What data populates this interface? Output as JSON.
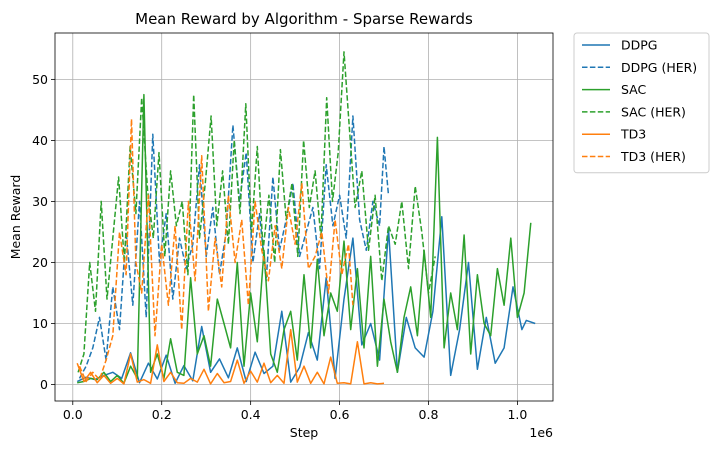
{
  "chart_data": {
    "type": "line",
    "title": "Mean Reward by Algorithm - Sparse Rewards",
    "xlabel": "Step",
    "ylabel": "Mean Reward",
    "x_offset_label": "1e6",
    "xlim": [
      -0.04,
      1.08
    ],
    "ylim": [
      -2.7,
      57.6
    ],
    "xticks": [
      0.0,
      0.2,
      0.4,
      0.6,
      0.8,
      1.0
    ],
    "xtick_labels": [
      "0.0",
      "0.2",
      "0.4",
      "0.6",
      "0.8",
      "1.0"
    ],
    "yticks": [
      0,
      10,
      20,
      30,
      40,
      50
    ],
    "ytick_labels": [
      "0",
      "10",
      "20",
      "30",
      "40",
      "50"
    ],
    "grid": true,
    "legend_position": "outside-upper-right",
    "series": [
      {
        "name": "DDPG",
        "color": "#1f77b4",
        "dash": "solid",
        "x": [
          0.01,
          0.03,
          0.05,
          0.07,
          0.09,
          0.11,
          0.13,
          0.15,
          0.17,
          0.19,
          0.21,
          0.23,
          0.25,
          0.27,
          0.29,
          0.31,
          0.33,
          0.35,
          0.37,
          0.39,
          0.41,
          0.43,
          0.45,
          0.47,
          0.49,
          0.51,
          0.53,
          0.55,
          0.57,
          0.59,
          0.61,
          0.63,
          0.65,
          0.67,
          0.69,
          0.71,
          0.73,
          0.75,
          0.77,
          0.79,
          0.81,
          0.83,
          0.85,
          0.87,
          0.89,
          0.91,
          0.93,
          0.95,
          0.97,
          0.99,
          1.01,
          1.02,
          1.04
        ],
        "y": [
          0.5,
          1.2,
          0.8,
          1.5,
          2.0,
          1.0,
          5.2,
          0.3,
          3.5,
          0.9,
          4.8,
          0.2,
          3.1,
          0.6,
          9.5,
          2.0,
          4.2,
          1.1,
          6.0,
          0.5,
          5.3,
          1.8,
          3.0,
          12.0,
          0.4,
          2.8,
          8.5,
          4.0,
          17.5,
          1.0,
          14.0,
          24.0,
          6.5,
          10.0,
          4.0,
          25.5,
          2.0,
          11.0,
          6.0,
          4.5,
          12.0,
          27.5,
          1.5,
          9.0,
          20.0,
          2.5,
          11.0,
          3.5,
          6.0,
          16.0,
          9.0,
          10.5,
          10.0
        ]
      },
      {
        "name": "DDPG (HER)",
        "color": "#1f77b4",
        "dash": "dashed",
        "x": [
          0.015,
          0.03,
          0.045,
          0.06,
          0.075,
          0.09,
          0.105,
          0.12,
          0.135,
          0.15,
          0.165,
          0.18,
          0.195,
          0.21,
          0.225,
          0.24,
          0.255,
          0.27,
          0.285,
          0.3,
          0.315,
          0.33,
          0.345,
          0.36,
          0.375,
          0.39,
          0.405,
          0.42,
          0.435,
          0.45,
          0.465,
          0.48,
          0.495,
          0.51,
          0.525,
          0.54,
          0.555,
          0.57,
          0.585,
          0.6,
          0.615,
          0.63,
          0.645,
          0.66,
          0.675,
          0.69,
          0.7,
          0.71
        ],
        "y": [
          1.0,
          3.0,
          6.0,
          11.0,
          4.0,
          16.0,
          9.0,
          25.0,
          13.0,
          30.0,
          11.0,
          41.0,
          20.0,
          28.0,
          14.0,
          24.0,
          19.0,
          23.0,
          36.0,
          21.0,
          29.0,
          18.0,
          25.0,
          42.5,
          30.0,
          38.0,
          20.0,
          28.0,
          17.0,
          34.0,
          22.0,
          27.0,
          33.0,
          21.0,
          25.0,
          29.0,
          19.0,
          36.0,
          26.0,
          31.0,
          24.0,
          44.0,
          27.0,
          22.0,
          30.0,
          26.0,
          39.0,
          31.0
        ]
      },
      {
        "name": "SAC",
        "color": "#2ca02c",
        "dash": "solid",
        "x": [
          0.01,
          0.025,
          0.04,
          0.055,
          0.07,
          0.085,
          0.1,
          0.115,
          0.13,
          0.145,
          0.16,
          0.175,
          0.19,
          0.205,
          0.22,
          0.235,
          0.25,
          0.265,
          0.28,
          0.295,
          0.31,
          0.325,
          0.34,
          0.355,
          0.37,
          0.385,
          0.4,
          0.415,
          0.43,
          0.445,
          0.46,
          0.475,
          0.49,
          0.505,
          0.52,
          0.535,
          0.55,
          0.565,
          0.58,
          0.595,
          0.61,
          0.625,
          0.64,
          0.655,
          0.67,
          0.685,
          0.7,
          0.715,
          0.73,
          0.745,
          0.76,
          0.775,
          0.79,
          0.805,
          0.82,
          0.835,
          0.85,
          0.865,
          0.88,
          0.895,
          0.91,
          0.925,
          0.94,
          0.955,
          0.97,
          0.985,
          1.0,
          1.015,
          1.03
        ],
        "y": [
          0.3,
          0.5,
          1.0,
          0.8,
          2.0,
          0.5,
          1.5,
          0.2,
          3.0,
          1.0,
          47.5,
          2.0,
          5.0,
          1.0,
          7.5,
          2.0,
          1.5,
          17.5,
          5.0,
          8.0,
          3.0,
          14.0,
          10.0,
          6.0,
          20.0,
          3.0,
          15.0,
          7.0,
          22.0,
          5.0,
          2.0,
          9.0,
          12.0,
          4.0,
          18.0,
          6.0,
          20.5,
          8.0,
          15.0,
          12.0,
          23.5,
          9.0,
          19.0,
          6.0,
          21.0,
          3.0,
          14.0,
          7.0,
          2.0,
          11.0,
          16.0,
          8.0,
          22.0,
          11.0,
          40.5,
          6.0,
          15.0,
          9.0,
          24.5,
          5.0,
          18.0,
          10.0,
          8.0,
          19.0,
          13.0,
          24.0,
          11.0,
          15.0,
          26.5
        ]
      },
      {
        "name": "SAC (HER)",
        "color": "#2ca02c",
        "dash": "dashed",
        "x": [
          0.012,
          0.025,
          0.038,
          0.051,
          0.064,
          0.077,
          0.09,
          0.103,
          0.116,
          0.129,
          0.142,
          0.155,
          0.168,
          0.181,
          0.194,
          0.207,
          0.22,
          0.233,
          0.246,
          0.259,
          0.272,
          0.285,
          0.298,
          0.311,
          0.324,
          0.337,
          0.35,
          0.363,
          0.376,
          0.389,
          0.402,
          0.415,
          0.428,
          0.441,
          0.454,
          0.467,
          0.48,
          0.493,
          0.506,
          0.519,
          0.532,
          0.545,
          0.558,
          0.571,
          0.584,
          0.597,
          0.61,
          0.62,
          0.635,
          0.65,
          0.665,
          0.68,
          0.695,
          0.71,
          0.725,
          0.74,
          0.755,
          0.77,
          0.785,
          0.8,
          0.815
        ],
        "y": [
          2.0,
          5.0,
          20.0,
          12.0,
          30.0,
          14.0,
          24.0,
          34.0,
          20.0,
          39.0,
          28.0,
          47.0,
          32.0,
          24.0,
          38.0,
          21.0,
          35.0,
          26.0,
          30.0,
          18.0,
          47.5,
          24.0,
          33.0,
          44.0,
          26.0,
          35.0,
          23.0,
          40.0,
          28.0,
          46.0,
          25.0,
          39.0,
          22.0,
          31.0,
          20.0,
          38.5,
          27.0,
          33.0,
          21.0,
          40.0,
          29.0,
          35.0,
          24.0,
          47.0,
          30.0,
          38.0,
          54.5,
          44.0,
          29.0,
          35.0,
          22.0,
          31.0,
          17.0,
          26.0,
          23.0,
          30.0,
          19.0,
          32.5,
          25.0,
          15.0,
          21.0
        ]
      },
      {
        "name": "TD3",
        "color": "#ff7f0e",
        "dash": "solid",
        "x": [
          0.01,
          0.025,
          0.04,
          0.055,
          0.07,
          0.085,
          0.1,
          0.115,
          0.13,
          0.145,
          0.16,
          0.175,
          0.19,
          0.205,
          0.22,
          0.235,
          0.25,
          0.265,
          0.28,
          0.295,
          0.31,
          0.325,
          0.34,
          0.355,
          0.37,
          0.385,
          0.4,
          0.415,
          0.43,
          0.445,
          0.46,
          0.475,
          0.49,
          0.505,
          0.52,
          0.535,
          0.55,
          0.565,
          0.58,
          0.595,
          0.61,
          0.625,
          0.64,
          0.655,
          0.67,
          0.685,
          0.7
        ],
        "y": [
          3.5,
          0.5,
          2.0,
          0.3,
          1.5,
          0.2,
          1.0,
          0.1,
          5.0,
          0.4,
          0.8,
          0.2,
          6.5,
          0.5,
          2.0,
          0.3,
          0.2,
          1.0,
          0.4,
          2.5,
          0.1,
          1.8,
          0.3,
          0.5,
          4.0,
          0.2,
          2.2,
          0.4,
          3.5,
          0.3,
          1.5,
          0.2,
          9.0,
          0.4,
          3.0,
          0.2,
          2.0,
          0.1,
          4.5,
          0.2,
          0.3,
          0.1,
          7.0,
          0.1,
          0.3,
          0.1,
          0.2
        ]
      },
      {
        "name": "TD3 (HER)",
        "color": "#ff7f0e",
        "dash": "dashed",
        "x": [
          0.015,
          0.03,
          0.045,
          0.06,
          0.075,
          0.09,
          0.105,
          0.12,
          0.132,
          0.142,
          0.155,
          0.17,
          0.185,
          0.2,
          0.215,
          0.23,
          0.245,
          0.26,
          0.275,
          0.29,
          0.305,
          0.32,
          0.335,
          0.35,
          0.365,
          0.38,
          0.395,
          0.41,
          0.425,
          0.44,
          0.455,
          0.47,
          0.485,
          0.5,
          0.515,
          0.53,
          0.545,
          0.56,
          0.575,
          0.59,
          0.605,
          0.62,
          0.63
        ],
        "y": [
          3.0,
          0.5,
          2.0,
          0.8,
          4.0,
          8.0,
          25.0,
          18.0,
          43.5,
          20.0,
          15.0,
          31.0,
          8.0,
          23.0,
          13.0,
          26.0,
          9.0,
          30.0,
          17.0,
          37.5,
          12.0,
          24.0,
          16.0,
          31.0,
          20.0,
          27.0,
          13.0,
          30.0,
          22.0,
          17.0,
          26.0,
          19.0,
          29.0,
          23.0,
          33.0,
          19.0,
          21.0,
          25.0,
          15.0,
          27.0,
          18.0,
          23.0,
          13.0
        ]
      }
    ]
  }
}
